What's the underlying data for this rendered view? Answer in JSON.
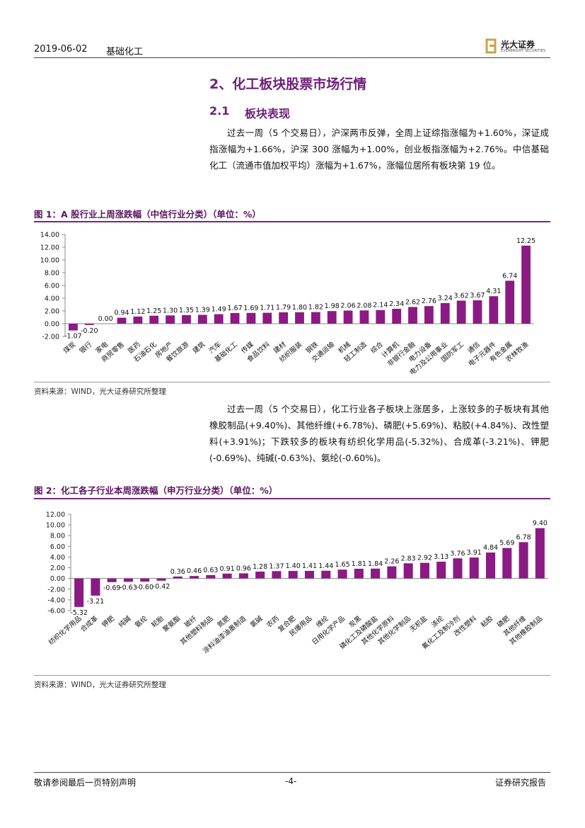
{
  "header": {
    "date": "2019-06-02",
    "industry": "基础化工",
    "brand": "光大证券",
    "brand_en": "EVERBRIGHT SECURITIES"
  },
  "section": {
    "title": "2、化工板块股票市场行情",
    "subnum": "2.1",
    "subtitle": "板块表现"
  },
  "paragraphs": [
    "过去一周（5 个交易日），沪深两市反弹，全周上证综指涨幅为+1.60%，深证成指涨幅为+1.66%，沪深 300 涨幅为+1.00%，创业板指涨幅为+2.76%。中信基础化工（流通市值加权平均）涨幅为+1.67%，涨幅位居所有板块第 19 位。",
    "过去一周（5 个交易日），化工行业各子板块上涨居多，上涨较多的子板块有其他橡胶制品(+9.40%)、其他纤维(+6.78%)、磷肥(+5.69%)、粘胶(+4.84%)、改性塑料(+3.91%)；下跌较多的板块有纺织化学用品(-5.32%)、合成革(-3.21%)、钾肥(-0.69%)、纯碱(-0.63%)、氨纶(-0.60%)。"
  ],
  "chart_data": [
    {
      "type": "bar",
      "title": "图 1：A 股行业上周涨跌幅（中信行业分类）（单位：%）",
      "source": "资料来源：WIND，光大证券研究所整理",
      "color": "#8b1a84",
      "categories": [
        "煤炭",
        "银行",
        "家电",
        "商贸零售",
        "医药",
        "石油石化",
        "房地产",
        "餐饮旅游",
        "建筑",
        "汽车",
        "基础化工",
        "传媒",
        "食品饮料",
        "建材",
        "纺织服装",
        "钢铁",
        "交通运输",
        "机械",
        "轻工制造",
        "综合",
        "计算机",
        "非银行金融",
        "电力设备",
        "电力及公用事业",
        "国防军工",
        "通信",
        "电子元器件",
        "有色金属",
        "农林牧渔"
      ],
      "values": [
        -1.07,
        -0.2,
        0,
        0.94,
        1.12,
        1.25,
        1.3,
        1.35,
        1.39,
        1.49,
        1.67,
        1.69,
        1.71,
        1.79,
        1.8,
        1.82,
        1.98,
        2.06,
        2.08,
        2.14,
        2.34,
        2.62,
        2.76,
        3.24,
        3.62,
        3.67,
        4.31,
        6.74,
        12.25
      ],
      "value_labels": [
        "-1.07",
        "-0.20",
        "0.00",
        "0.94",
        "1.12",
        "1.25",
        "1.30",
        "1.35",
        "1.39",
        "1.49",
        "1.67",
        "1.69",
        "1.71",
        "1.79",
        "1.80",
        "1.82",
        "1.98",
        "2.06",
        "2.08",
        "2.14",
        "2.34",
        "2.62",
        "2.76",
        "3.24",
        "3.62",
        "3.67",
        "4.31",
        "6.74",
        "12.25"
      ],
      "ylim": [
        -2,
        14
      ],
      "yticks": [
        {
          "value": -2,
          "label": "-2.00"
        },
        {
          "value": 0,
          "label": "0.00"
        },
        {
          "value": 2,
          "label": "2.00"
        },
        {
          "value": 4,
          "label": "4.00"
        },
        {
          "value": 6,
          "label": "6.00"
        },
        {
          "value": 8,
          "label": "8.00"
        },
        {
          "value": 10,
          "label": "10.00"
        },
        {
          "value": 12,
          "label": "12.00"
        },
        {
          "value": 14,
          "label": "14.00"
        }
      ]
    },
    {
      "type": "bar",
      "title": "图 2：化工各子行业本周涨跌幅（申万行业分类）（单位：%）",
      "source": "资料来源：WIND，光大证券研究所整理",
      "color": "#8b1a84",
      "categories": [
        "纺织化学用品",
        "合成革",
        "钾肥",
        "纯碱",
        "氨纶",
        "轮胎",
        "聚氨酯",
        "玻纤",
        "其他塑料制品",
        "氮肥",
        "涂料油漆油墨制造",
        "氯碱",
        "农药",
        "复合肥",
        "民爆用品",
        "维纶",
        "日用化学产品",
        "炭黑",
        "磷化工及磷酸盐",
        "其他化学原料",
        "其他化学制品",
        "无机盐",
        "涤纶",
        "氟化工及制冷剂",
        "改性塑料",
        "粘胶",
        "磷肥",
        "其他纤维",
        "其他橡胶制品"
      ],
      "values": [
        -5.32,
        -3.21,
        -0.69,
        -0.63,
        -0.6,
        -0.42,
        0.36,
        0.46,
        0.63,
        0.91,
        0.96,
        1.28,
        1.37,
        1.4,
        1.41,
        1.44,
        1.65,
        1.81,
        1.84,
        2.26,
        2.83,
        2.92,
        3.13,
        3.76,
        3.91,
        4.84,
        5.69,
        6.78,
        9.4
      ],
      "value_labels": [
        "-5.32",
        "-3.21",
        "-0.69",
        "-0.63",
        "-0.60",
        "-0.42",
        "0.36",
        "0.46",
        "0.63",
        "0.91",
        "0.96",
        "1.28",
        "1.37",
        "1.40",
        "1.41",
        "1.44",
        "1.65",
        "1.81",
        "1.84",
        "2.26",
        "2.83",
        "2.92",
        "3.13",
        "3.76",
        "3.91",
        "4.84",
        "5.69",
        "6.78",
        "9.40"
      ],
      "ylim": [
        -6,
        12
      ],
      "yticks": [
        {
          "value": -6,
          "label": "-6.00"
        },
        {
          "value": -4,
          "label": "-4.00"
        },
        {
          "value": -2,
          "label": "-2.00"
        },
        {
          "value": 0,
          "label": "0.00"
        },
        {
          "value": 2,
          "label": "2.00"
        },
        {
          "value": 4,
          "label": "4.00"
        },
        {
          "value": 6,
          "label": "6.00"
        },
        {
          "value": 8,
          "label": "8.00"
        },
        {
          "value": 10,
          "label": "10.00"
        },
        {
          "value": 12,
          "label": "12.00"
        }
      ]
    }
  ],
  "footer": {
    "left": "敬请参阅最后一页特别声明",
    "center": "-4-",
    "right": "证券研究报告"
  }
}
